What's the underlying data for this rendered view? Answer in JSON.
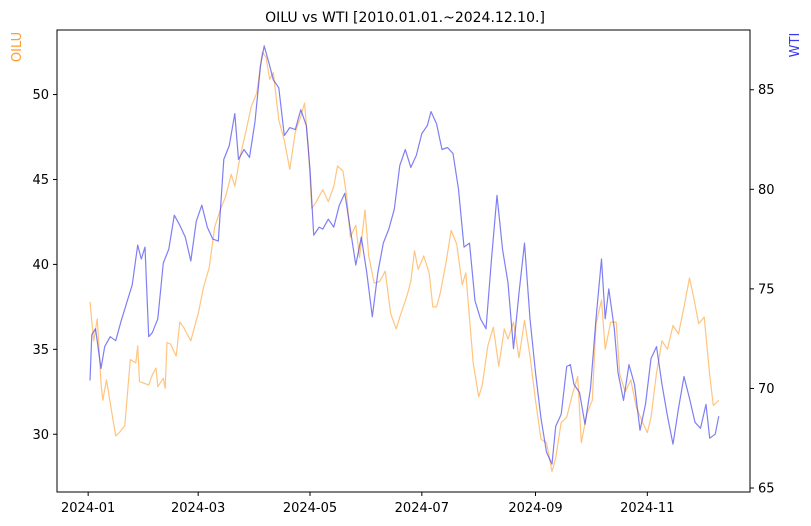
{
  "chart_data": {
    "type": "line",
    "title": "OILU vs WTI [2010.01.01.~2024.12.10.]",
    "ylabel_left": "OILU",
    "ylabel_right": "WTI",
    "ylim_left": [
      26.6,
      53.8
    ],
    "ylim_right": [
      64.8,
      88.0
    ],
    "left_ticks": [
      30,
      35,
      40,
      45,
      50
    ],
    "right_ticks": [
      65,
      70,
      75,
      80,
      85
    ],
    "x_ticks": [
      "2024-01",
      "2024-03",
      "2024-05",
      "2024-07",
      "2024-09",
      "2024-11"
    ],
    "x_tick_days": [
      0,
      60,
      121,
      182,
      244,
      305
    ],
    "x_range_days": [
      -17,
      361
    ],
    "grid": false,
    "colors": {
      "OILU": "#ff9e2c",
      "WTI": "#3a3aee"
    },
    "series": [
      {
        "name": "OILU",
        "axis": "left",
        "points": [
          [
            "2024-01-02",
            37.8
          ],
          [
            "2024-01-04",
            35.5
          ],
          [
            "2024-01-06",
            36.8
          ],
          [
            "2024-01-08",
            33.0
          ],
          [
            "2024-01-09",
            32.0
          ],
          [
            "2024-01-11",
            33.2
          ],
          [
            "2024-01-14",
            31.2
          ],
          [
            "2024-01-16",
            29.9
          ],
          [
            "2024-01-18",
            30.1
          ],
          [
            "2024-01-21",
            30.5
          ],
          [
            "2024-01-24",
            34.4
          ],
          [
            "2024-01-27",
            34.2
          ],
          [
            "2024-01-28",
            35.2
          ],
          [
            "2024-01-29",
            33.1
          ],
          [
            "2024-02-03",
            32.9
          ],
          [
            "2024-02-05",
            33.5
          ],
          [
            "2024-02-07",
            33.9
          ],
          [
            "2024-02-08",
            32.8
          ],
          [
            "2024-02-11",
            33.3
          ],
          [
            "2024-02-12",
            32.7
          ],
          [
            "2024-02-13",
            35.4
          ],
          [
            "2024-02-15",
            35.3
          ],
          [
            "2024-02-18",
            34.6
          ],
          [
            "2024-02-20",
            36.6
          ],
          [
            "2024-02-22",
            36.3
          ],
          [
            "2024-02-26",
            35.5
          ],
          [
            "2024-02-29",
            36.7
          ],
          [
            "2024-03-01",
            37.1
          ],
          [
            "2024-03-04",
            38.7
          ],
          [
            "2024-03-07",
            39.8
          ],
          [
            "2024-03-10",
            42.2
          ],
          [
            "2024-03-13",
            43.2
          ],
          [
            "2024-03-16",
            44.0
          ],
          [
            "2024-03-19",
            45.3
          ],
          [
            "2024-03-21",
            44.6
          ],
          [
            "2024-03-24",
            46.4
          ],
          [
            "2024-03-27",
            47.8
          ],
          [
            "2024-03-30",
            49.3
          ],
          [
            "2024-04-02",
            50.1
          ],
          [
            "2024-04-05",
            52.5
          ],
          [
            "2024-04-07",
            52.2
          ],
          [
            "2024-04-09",
            50.9
          ],
          [
            "2024-04-11",
            51.3
          ],
          [
            "2024-04-14",
            48.5
          ],
          [
            "2024-04-17",
            47.3
          ],
          [
            "2024-04-20",
            45.6
          ],
          [
            "2024-04-23",
            47.8
          ],
          [
            "2024-04-26",
            48.7
          ],
          [
            "2024-04-28",
            49.5
          ],
          [
            "2024-04-30",
            47.0
          ],
          [
            "2024-05-02",
            43.3
          ],
          [
            "2024-05-04",
            43.6
          ],
          [
            "2024-05-08",
            44.4
          ],
          [
            "2024-05-11",
            43.7
          ],
          [
            "2024-05-14",
            44.6
          ],
          [
            "2024-05-16",
            45.8
          ],
          [
            "2024-05-19",
            45.5
          ],
          [
            "2024-05-21",
            44.0
          ],
          [
            "2024-05-23",
            41.6
          ],
          [
            "2024-05-26",
            42.3
          ],
          [
            "2024-05-28",
            40.4
          ],
          [
            "2024-05-31",
            43.2
          ],
          [
            "2024-06-02",
            40.5
          ],
          [
            "2024-06-05",
            38.9
          ],
          [
            "2024-06-08",
            39.0
          ],
          [
            "2024-06-11",
            39.6
          ],
          [
            "2024-06-14",
            37.1
          ],
          [
            "2024-06-17",
            36.2
          ],
          [
            "2024-06-19",
            36.9
          ],
          [
            "2024-06-23",
            38.2
          ],
          [
            "2024-06-25",
            39.0
          ],
          [
            "2024-06-27",
            40.8
          ],
          [
            "2024-06-29",
            39.7
          ],
          [
            "2024-07-02",
            40.5
          ],
          [
            "2024-07-05",
            39.5
          ],
          [
            "2024-07-07",
            37.5
          ],
          [
            "2024-07-09",
            37.5
          ],
          [
            "2024-07-11",
            38.3
          ],
          [
            "2024-07-14",
            40.0
          ],
          [
            "2024-07-17",
            42.0
          ],
          [
            "2024-07-20",
            41.2
          ],
          [
            "2024-07-23",
            38.8
          ],
          [
            "2024-07-25",
            39.5
          ],
          [
            "2024-07-29",
            34.2
          ],
          [
            "2024-08-01",
            32.2
          ],
          [
            "2024-08-03",
            32.9
          ],
          [
            "2024-08-06",
            35.2
          ],
          [
            "2024-08-09",
            36.3
          ],
          [
            "2024-08-12",
            34.0
          ],
          [
            "2024-08-15",
            36.2
          ],
          [
            "2024-08-17",
            35.6
          ],
          [
            "2024-08-20",
            36.6
          ],
          [
            "2024-08-23",
            34.5
          ],
          [
            "2024-08-26",
            36.7
          ],
          [
            "2024-08-29",
            34.6
          ],
          [
            "2024-09-01",
            32.0
          ],
          [
            "2024-09-04",
            29.7
          ],
          [
            "2024-09-07",
            29.5
          ],
          [
            "2024-09-10",
            27.8
          ],
          [
            "2024-09-12",
            28.6
          ],
          [
            "2024-09-15",
            30.7
          ],
          [
            "2024-09-18",
            31.0
          ],
          [
            "2024-09-21",
            32.3
          ],
          [
            "2024-09-24",
            33.4
          ],
          [
            "2024-09-26",
            29.5
          ],
          [
            "2024-09-29",
            31.2
          ],
          [
            "2024-10-02",
            32.0
          ],
          [
            "2024-10-04",
            36.5
          ],
          [
            "2024-10-07",
            37.9
          ],
          [
            "2024-10-09",
            35.0
          ],
          [
            "2024-10-12",
            36.6
          ],
          [
            "2024-10-15",
            36.6
          ],
          [
            "2024-10-17",
            33.5
          ],
          [
            "2024-10-20",
            32.5
          ],
          [
            "2024-10-23",
            33.2
          ],
          [
            "2024-10-26",
            31.6
          ],
          [
            "2024-10-29",
            30.8
          ],
          [
            "2024-11-01",
            30.1
          ],
          [
            "2024-11-03",
            31.0
          ],
          [
            "2024-11-06",
            33.6
          ],
          [
            "2024-11-09",
            35.5
          ],
          [
            "2024-11-12",
            35.0
          ],
          [
            "2024-11-15",
            36.4
          ],
          [
            "2024-11-18",
            35.9
          ],
          [
            "2024-11-21",
            37.5
          ],
          [
            "2024-11-24",
            39.2
          ],
          [
            "2024-11-26",
            38.2
          ],
          [
            "2024-11-29",
            36.5
          ],
          [
            "2024-12-02",
            36.9
          ],
          [
            "2024-12-05",
            33.5
          ],
          [
            "2024-12-07",
            31.7
          ],
          [
            "2024-12-10",
            32.0
          ]
        ]
      },
      {
        "name": "WTI",
        "axis": "right",
        "points": [
          [
            "2024-01-02",
            70.4
          ],
          [
            "2024-01-03",
            72.7
          ],
          [
            "2024-01-05",
            73.0
          ],
          [
            "2024-01-08",
            71.0
          ],
          [
            "2024-01-10",
            72.1
          ],
          [
            "2024-01-13",
            72.6
          ],
          [
            "2024-01-16",
            72.4
          ],
          [
            "2024-01-19",
            73.4
          ],
          [
            "2024-01-22",
            74.3
          ],
          [
            "2024-01-25",
            75.2
          ],
          [
            "2024-01-28",
            77.2
          ],
          [
            "2024-01-30",
            76.5
          ],
          [
            "2024-02-01",
            77.1
          ],
          [
            "2024-02-03",
            72.6
          ],
          [
            "2024-02-05",
            72.8
          ],
          [
            "2024-02-08",
            73.5
          ],
          [
            "2024-02-11",
            76.3
          ],
          [
            "2024-02-14",
            77.0
          ],
          [
            "2024-02-17",
            78.7
          ],
          [
            "2024-02-20",
            78.2
          ],
          [
            "2024-02-23",
            77.6
          ],
          [
            "2024-02-26",
            76.4
          ],
          [
            "2024-02-29",
            78.4
          ],
          [
            "2024-03-03",
            79.2
          ],
          [
            "2024-03-06",
            78.1
          ],
          [
            "2024-03-09",
            77.5
          ],
          [
            "2024-03-12",
            77.4
          ],
          [
            "2024-03-15",
            81.5
          ],
          [
            "2024-03-18",
            82.2
          ],
          [
            "2024-03-21",
            83.8
          ],
          [
            "2024-03-23",
            81.5
          ],
          [
            "2024-03-26",
            82.0
          ],
          [
            "2024-03-29",
            81.6
          ],
          [
            "2024-04-01",
            83.4
          ],
          [
            "2024-04-04",
            86.2
          ],
          [
            "2024-04-06",
            87.2
          ],
          [
            "2024-04-09",
            86.2
          ],
          [
            "2024-04-11",
            85.5
          ],
          [
            "2024-04-14",
            85.1
          ],
          [
            "2024-04-17",
            82.7
          ],
          [
            "2024-04-20",
            83.1
          ],
          [
            "2024-04-23",
            83.0
          ],
          [
            "2024-04-26",
            84.0
          ],
          [
            "2024-04-29",
            83.2
          ],
          [
            "2024-05-01",
            81.0
          ],
          [
            "2024-05-03",
            77.7
          ],
          [
            "2024-05-06",
            78.1
          ],
          [
            "2024-05-08",
            78.0
          ],
          [
            "2024-05-11",
            78.5
          ],
          [
            "2024-05-14",
            78.1
          ],
          [
            "2024-05-17",
            79.2
          ],
          [
            "2024-05-20",
            79.8
          ],
          [
            "2024-05-23",
            78.0
          ],
          [
            "2024-05-26",
            76.2
          ],
          [
            "2024-05-29",
            77.6
          ],
          [
            "2024-06-01",
            75.8
          ],
          [
            "2024-06-04",
            73.6
          ],
          [
            "2024-06-07",
            75.8
          ],
          [
            "2024-06-10",
            77.3
          ],
          [
            "2024-06-13",
            78.0
          ],
          [
            "2024-06-16",
            79.0
          ],
          [
            "2024-06-19",
            81.2
          ],
          [
            "2024-06-22",
            82.0
          ],
          [
            "2024-06-25",
            81.1
          ],
          [
            "2024-06-28",
            81.7
          ],
          [
            "2024-07-01",
            82.8
          ],
          [
            "2024-07-04",
            83.2
          ],
          [
            "2024-07-06",
            83.9
          ],
          [
            "2024-07-09",
            83.3
          ],
          [
            "2024-07-12",
            82.0
          ],
          [
            "2024-07-15",
            82.1
          ],
          [
            "2024-07-18",
            81.8
          ],
          [
            "2024-07-21",
            80.0
          ],
          [
            "2024-07-24",
            77.1
          ],
          [
            "2024-07-27",
            77.3
          ],
          [
            "2024-07-30",
            74.4
          ],
          [
            "2024-08-02",
            73.5
          ],
          [
            "2024-08-05",
            73.0
          ],
          [
            "2024-08-08",
            76.5
          ],
          [
            "2024-08-11",
            79.7
          ],
          [
            "2024-08-14",
            77.0
          ],
          [
            "2024-08-17",
            75.3
          ],
          [
            "2024-08-20",
            72.0
          ],
          [
            "2024-08-23",
            74.8
          ],
          [
            "2024-08-26",
            77.3
          ],
          [
            "2024-08-29",
            73.5
          ],
          [
            "2024-09-01",
            70.8
          ],
          [
            "2024-09-04",
            68.5
          ],
          [
            "2024-09-07",
            66.8
          ],
          [
            "2024-09-10",
            66.2
          ],
          [
            "2024-09-12",
            68.1
          ],
          [
            "2024-09-15",
            68.7
          ],
          [
            "2024-09-18",
            71.1
          ],
          [
            "2024-09-20",
            71.2
          ],
          [
            "2024-09-22",
            70.2
          ],
          [
            "2024-09-25",
            69.8
          ],
          [
            "2024-09-28",
            68.2
          ],
          [
            "2024-10-01",
            70.0
          ],
          [
            "2024-10-04",
            73.5
          ],
          [
            "2024-10-07",
            76.5
          ],
          [
            "2024-10-09",
            73.5
          ],
          [
            "2024-10-11",
            75.0
          ],
          [
            "2024-10-14",
            73.0
          ],
          [
            "2024-10-16",
            70.8
          ],
          [
            "2024-10-19",
            69.4
          ],
          [
            "2024-10-22",
            71.2
          ],
          [
            "2024-10-25",
            70.2
          ],
          [
            "2024-10-28",
            67.9
          ],
          [
            "2024-10-31",
            69.2
          ],
          [
            "2024-11-03",
            71.5
          ],
          [
            "2024-11-06",
            72.1
          ],
          [
            "2024-11-09",
            70.2
          ],
          [
            "2024-11-12",
            68.6
          ],
          [
            "2024-11-15",
            67.2
          ],
          [
            "2024-11-18",
            69.0
          ],
          [
            "2024-11-21",
            70.6
          ],
          [
            "2024-11-24",
            69.5
          ],
          [
            "2024-11-27",
            68.3
          ],
          [
            "2024-11-30",
            68.0
          ],
          [
            "2024-12-03",
            69.2
          ],
          [
            "2024-12-05",
            67.5
          ],
          [
            "2024-12-08",
            67.7
          ],
          [
            "2024-12-10",
            68.6
          ]
        ]
      }
    ]
  }
}
